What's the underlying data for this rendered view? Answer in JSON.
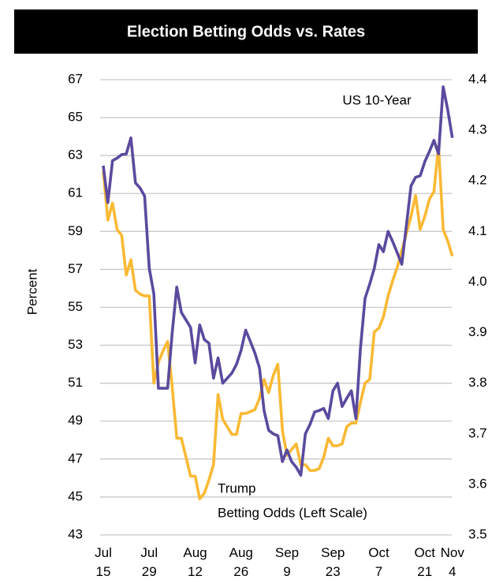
{
  "chart_data": {
    "type": "line",
    "title": "Election Betting Odds vs. Rates",
    "y_label": "Percent",
    "annotations": [
      "US 10-Year",
      "Trump",
      "Betting Odds (Left Scale)"
    ],
    "categories": [
      "Jul 15",
      null,
      null,
      null,
      null,
      null,
      null,
      null,
      null,
      null,
      "Jul 29",
      null,
      null,
      null,
      null,
      null,
      null,
      null,
      null,
      null,
      "Aug 12",
      null,
      null,
      null,
      null,
      null,
      null,
      null,
      null,
      null,
      "Aug 26",
      null,
      null,
      null,
      null,
      null,
      null,
      null,
      null,
      null,
      "Sep 9",
      null,
      null,
      null,
      null,
      null,
      null,
      null,
      null,
      null,
      "Sep 23",
      null,
      null,
      null,
      null,
      null,
      null,
      null,
      null,
      null,
      "Oct 7",
      null,
      null,
      null,
      null,
      null,
      null,
      null,
      null,
      null,
      "Oct 21",
      null,
      null,
      null,
      null,
      null,
      "Nov 4"
    ],
    "ylim": [
      43,
      67
    ],
    "yticks": [
      43,
      45,
      47,
      49,
      51,
      53,
      55,
      57,
      59,
      61,
      63,
      65,
      67
    ],
    "y2lim": [
      3.5,
      4.4
    ],
    "y2ticks": [
      3.5,
      3.6,
      3.7,
      3.8,
      3.9,
      {
        "value": 4,
        "label": "4.0"
      },
      4.1,
      4.2,
      4.3,
      4.4
    ],
    "grid": true,
    "series": [
      {
        "name": "Trump Betting Odds",
        "color": "#f9b934",
        "axis": "y",
        "values": [
          62.2,
          59.6,
          60.5,
          59.1,
          58.8,
          56.7,
          57.5,
          55.9,
          55.7,
          55.6,
          55.6,
          51.0,
          52.1,
          52.7,
          53.2,
          50.8,
          48.1,
          48.1,
          47.1,
          46.1,
          46.1,
          44.9,
          45.2,
          45.9,
          46.7,
          50.4,
          49.1,
          48.7,
          48.3,
          48.3,
          49.4,
          49.4,
          49.5,
          49.6,
          50.2,
          51.2,
          50.5,
          51.4,
          52.0,
          48.5,
          47.2,
          47.5,
          47.8,
          46.7,
          46.7,
          46.4,
          46.4,
          46.5,
          47.1,
          48.1,
          47.7,
          47.7,
          47.8,
          48.7,
          48.9,
          48.9,
          50.0,
          51.0,
          51.2,
          53.7,
          53.9,
          54.5,
          55.6,
          56.4,
          57.1,
          58.0,
          58.9,
          59.8,
          60.9,
          59.1,
          59.8,
          60.7,
          61.1,
          63.5,
          59.1,
          58.5,
          57.7
        ]
      },
      {
        "name": "US 10-Year",
        "color": "#5b4a9e",
        "axis": "y2",
        "values": [
          4.23,
          4.157,
          4.24,
          4.245,
          4.252,
          4.253,
          4.285,
          4.196,
          4.186,
          4.17,
          4.027,
          3.977,
          3.79,
          3.79,
          3.79,
          3.9,
          3.99,
          3.94,
          3.925,
          3.91,
          3.84,
          3.915,
          3.886,
          3.879,
          3.81,
          3.85,
          3.8,
          3.81,
          3.82,
          3.837,
          3.865,
          3.905,
          3.883,
          3.86,
          3.83,
          3.746,
          3.707,
          3.7,
          3.696,
          3.645,
          3.668,
          3.645,
          3.634,
          3.618,
          3.7,
          3.718,
          3.743,
          3.746,
          3.75,
          3.73,
          3.785,
          3.8,
          3.754,
          3.77,
          3.785,
          3.73,
          3.87,
          3.968,
          3.996,
          4.027,
          4.074,
          4.06,
          4.1,
          4.08,
          4.058,
          4.035,
          4.113,
          4.19,
          4.207,
          4.21,
          4.238,
          4.258,
          4.28,
          4.253,
          4.386,
          4.34,
          4.285
        ]
      }
    ]
  }
}
